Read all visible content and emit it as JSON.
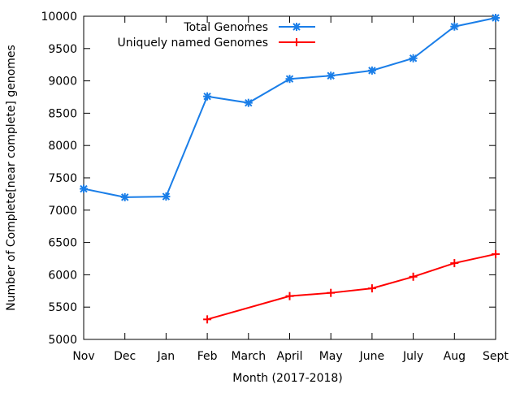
{
  "chart_data": {
    "type": "line",
    "title": "",
    "xlabel": "Month (2017-2018)",
    "ylabel": "Number of Complete[near complete] genomes",
    "categories": [
      "Nov",
      "Dec",
      "Jan",
      "Feb",
      "March",
      "April",
      "May",
      "June",
      "July",
      "Aug",
      "Sept"
    ],
    "ylim": [
      5000,
      10000
    ],
    "yticks": [
      5000,
      5500,
      6000,
      6500,
      7000,
      7500,
      8000,
      8500,
      9000,
      9500,
      10000
    ],
    "legend_position": "top-left",
    "grid": false,
    "series": [
      {
        "name": "Total Genomes",
        "color": "#1a7ee8",
        "marker": "star",
        "values": [
          7330,
          7200,
          7210,
          8760,
          8660,
          9030,
          9080,
          9160,
          9350,
          9840,
          9975
        ]
      },
      {
        "name": "Uniquely named Genomes",
        "color": "#ff0000",
        "marker": "plus",
        "values": [
          null,
          null,
          null,
          5310,
          null,
          5670,
          5720,
          5790,
          5970,
          6180,
          6320
        ]
      }
    ]
  }
}
